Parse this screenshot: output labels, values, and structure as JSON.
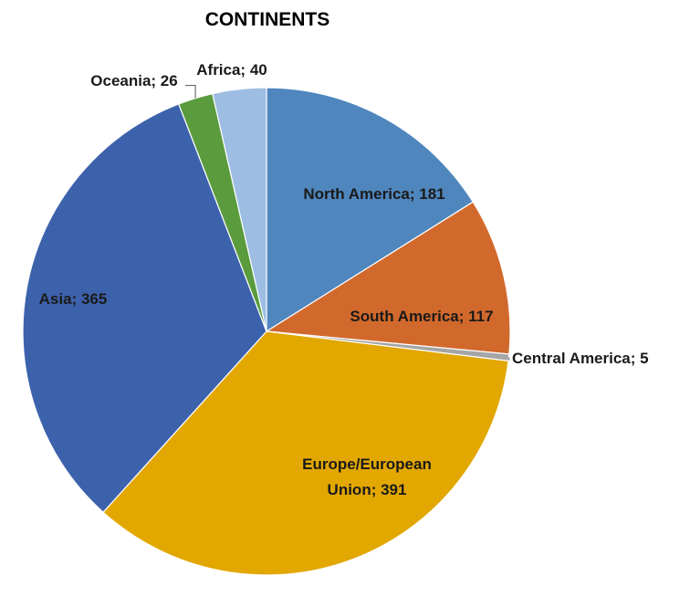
{
  "chart_data": {
    "type": "pie",
    "title": "CONTINENTS",
    "slices": [
      {
        "category": "North America",
        "value": 181,
        "label": "North America; 181",
        "color": "#4F86BD"
      },
      {
        "category": "South America",
        "value": 117,
        "label": "South America; 117",
        "color": "#D2692C"
      },
      {
        "category": "Central America",
        "value": 5,
        "label": "Central America; 5",
        "color": "#A5A5A5"
      },
      {
        "category": "Europe/European Union",
        "value": 391,
        "label_lines": [
          "Europe/European",
          "Union; 391"
        ],
        "color": "#E2A700"
      },
      {
        "category": "Asia",
        "value": 365,
        "label": "Asia; 365",
        "color": "#3D62AC"
      },
      {
        "category": "Oceania",
        "value": 26,
        "label": "Oceania; 26",
        "color": "#5A9B3E"
      },
      {
        "category": "Africa",
        "value": 40,
        "label": "Africa; 40",
        "color": "#9DBDE3"
      }
    ],
    "start": "12 o'clock",
    "direction": "clockwise",
    "legend": "none"
  }
}
